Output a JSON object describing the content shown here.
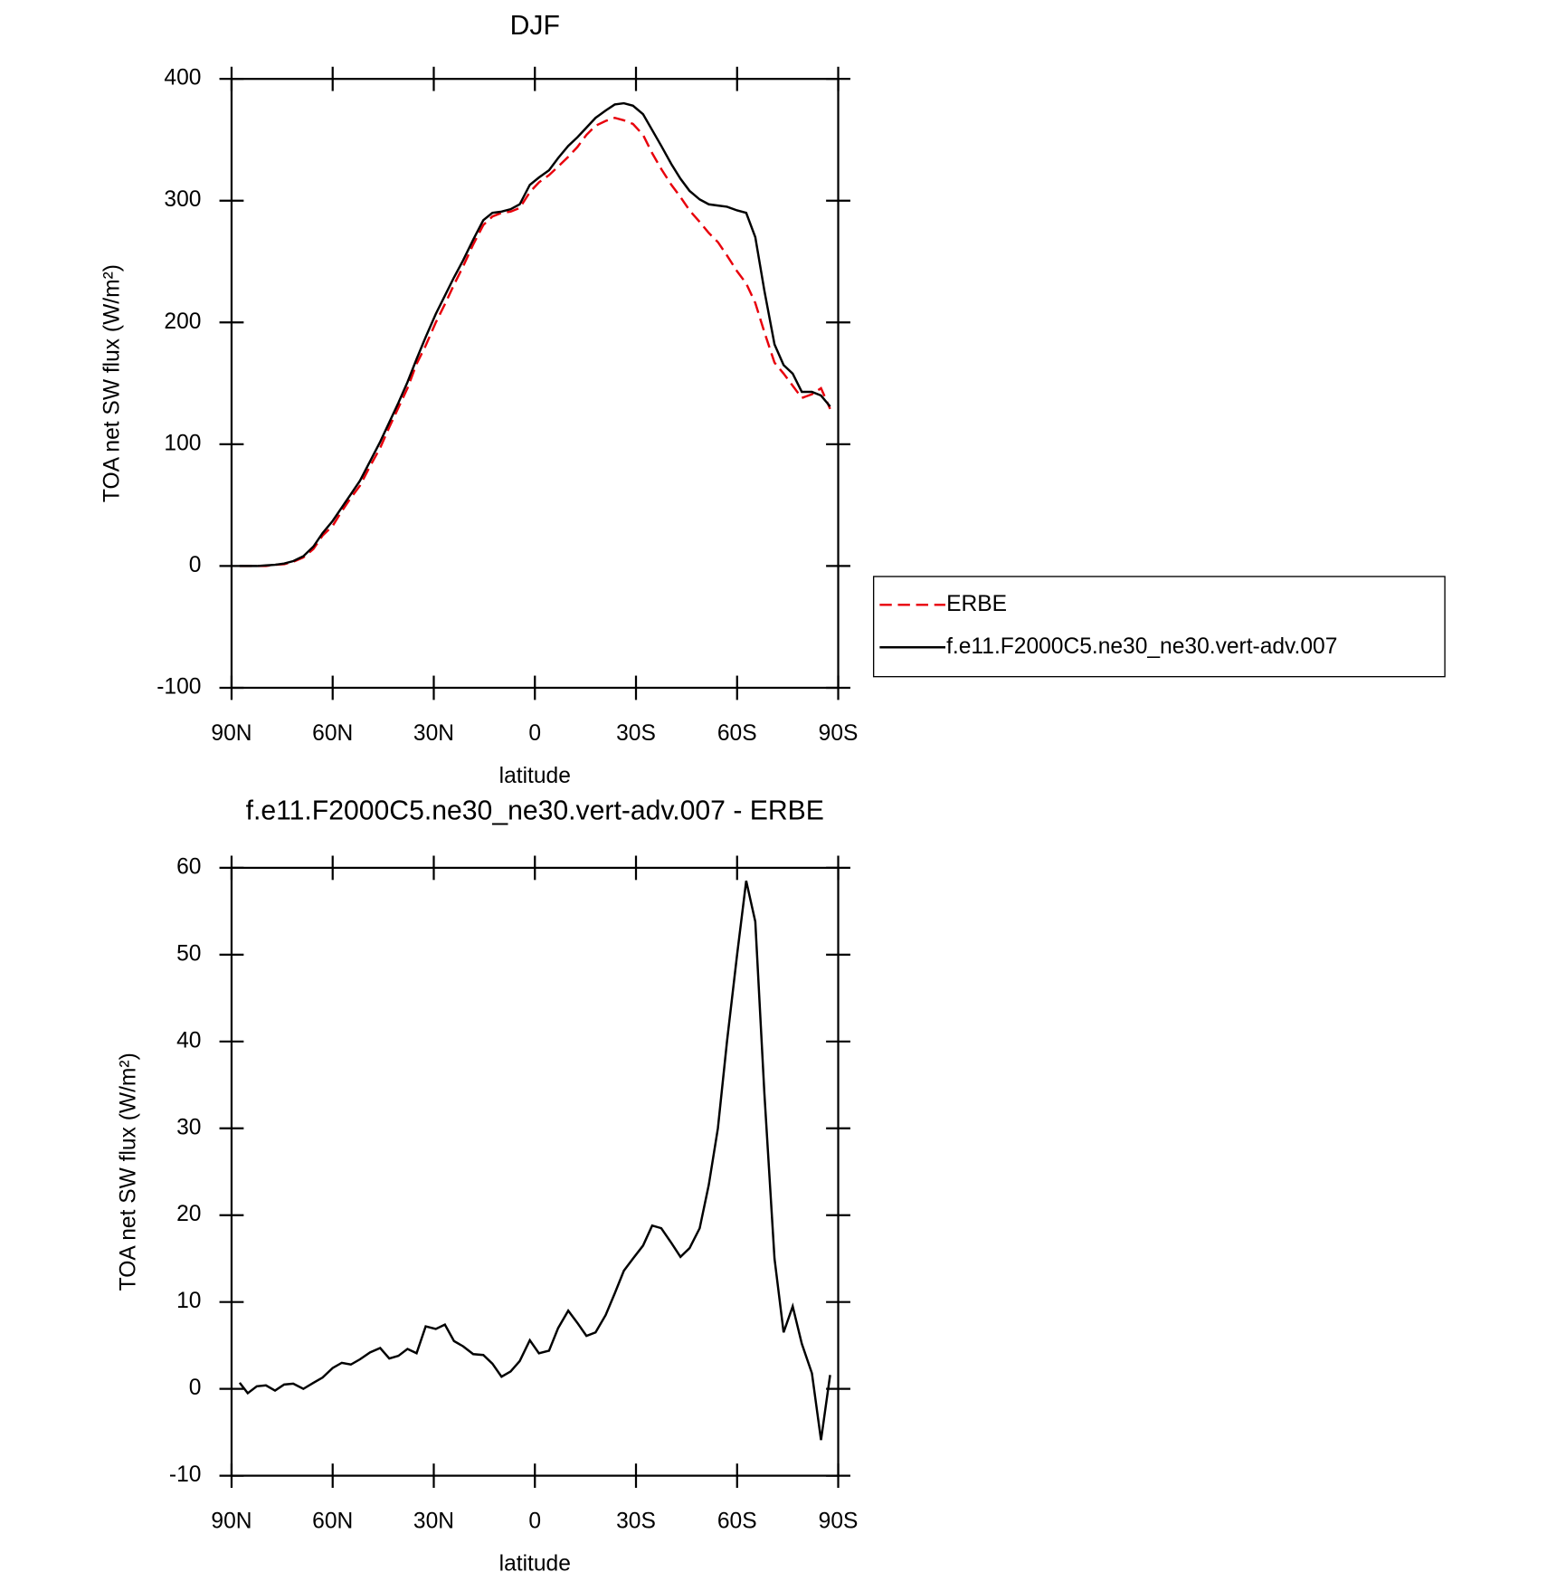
{
  "chart_data": [
    {
      "type": "line",
      "title": "DJF",
      "x_label": "latitude",
      "y_label": "TOA net SW flux (W/m²)",
      "x": [
        87.6,
        85.2,
        82.5,
        79.8,
        77.1,
        74.4,
        71.7,
        68.7,
        65.7,
        63.0,
        60.0,
        57.3,
        54.6,
        51.9,
        48.9,
        45.9,
        43.2,
        40.5,
        37.8,
        35.1,
        32.4,
        29.4,
        26.7,
        24.0,
        21.3,
        18.3,
        15.3,
        12.6,
        9.9,
        7.2,
        4.5,
        1.5,
        -1.2,
        -4.2,
        -6.9,
        -9.9,
        -12.6,
        -15.3,
        -18.0,
        -21.0,
        -23.7,
        -26.4,
        -29.1,
        -32.1,
        -34.8,
        -37.5,
        -40.5,
        -43.2,
        -45.9,
        -48.9,
        -51.6,
        -54.3,
        -57.0,
        -60.0,
        -62.7,
        -65.4,
        -68.1,
        -71.1,
        -73.8,
        -76.5,
        -79.2,
        -82.2,
        -84.9,
        -87.6
      ],
      "series": [
        {
          "name": "ERBE",
          "color": "#e8000b",
          "dash": true,
          "values": [
            0,
            0,
            0,
            0,
            1,
            1.5,
            3.5,
            7,
            14,
            25,
            33,
            45,
            56,
            66,
            82,
            97,
            114,
            130,
            146,
            166,
            181,
            200,
            215,
            231,
            246,
            264,
            280,
            287,
            290,
            291,
            294,
            307,
            315,
            321,
            328,
            336,
            344,
            354,
            361.5,
            365.5,
            368,
            366,
            363,
            354,
            339,
            326,
            313,
            303,
            292,
            282.5,
            273.5,
            266,
            255,
            242,
            232,
            216,
            192,
            167,
            158,
            148,
            138,
            141,
            146,
            129
          ]
        },
        {
          "name": "f.e11.F2000C5.ne30_ne30.vert-adv.007",
          "color": "#000000",
          "dash": false,
          "values": [
            0,
            0,
            0,
            0.5,
            1,
            2,
            4,
            8,
            16,
            27,
            37,
            48,
            59,
            70,
            86,
            102,
            118,
            134,
            151,
            170,
            188,
            207,
            222,
            237,
            251,
            268,
            284,
            290,
            291,
            293,
            297,
            313,
            319,
            325,
            335,
            345,
            352,
            360,
            368,
            374,
            379,
            380,
            378,
            371,
            358,
            345,
            330,
            318,
            308,
            301,
            297,
            296,
            295,
            292,
            290,
            270,
            226,
            182,
            165,
            158,
            143,
            143,
            140,
            131
          ]
        }
      ],
      "xlim": [
        90,
        -90
      ],
      "xticks": [
        {
          "value": 90,
          "label": "90N"
        },
        {
          "value": 60,
          "label": "60N"
        },
        {
          "value": 30,
          "label": "30N"
        },
        0,
        {
          "value": -30,
          "label": "30S"
        },
        {
          "value": -60,
          "label": "60S"
        },
        {
          "value": -90,
          "label": "90S"
        }
      ],
      "ylim": [
        -100,
        400
      ],
      "yticks": [
        -100,
        0,
        100,
        200,
        300,
        400
      ],
      "legend": "right"
    },
    {
      "type": "line",
      "title": "f.e11.F2000C5.ne30_ne30.vert-adv.007 - ERBE",
      "x_label": "latitude",
      "y_label": "TOA net SW flux (W/m²)",
      "x": [
        87.6,
        85.2,
        82.5,
        79.8,
        77.1,
        74.4,
        71.7,
        68.7,
        65.7,
        63.0,
        60.0,
        57.3,
        54.6,
        51.9,
        48.9,
        45.9,
        43.2,
        40.5,
        37.8,
        35.1,
        32.4,
        29.4,
        26.7,
        24.0,
        21.3,
        18.3,
        15.3,
        12.6,
        9.9,
        7.2,
        4.5,
        1.5,
        -1.2,
        -4.2,
        -6.9,
        -9.9,
        -12.6,
        -15.3,
        -18.0,
        -21.0,
        -23.7,
        -26.4,
        -29.1,
        -32.1,
        -34.8,
        -37.5,
        -40.5,
        -43.2,
        -45.9,
        -48.9,
        -51.6,
        -54.3,
        -57.0,
        -60.0,
        -62.7,
        -65.4,
        -68.1,
        -71.1,
        -73.8,
        -76.5,
        -79.2,
        -82.2,
        -84.9,
        -87.6
      ],
      "series": [
        {
          "color": "#000000",
          "dash": false,
          "values": [
            0.7,
            -0.5,
            0.3,
            0.4,
            -0.2,
            0.5,
            0.6,
            0,
            0.7,
            1.3,
            2.4,
            3.0,
            2.8,
            3.4,
            4.2,
            4.7,
            3.5,
            3.8,
            4.6,
            4.1,
            7.2,
            6.9,
            7.4,
            5.5,
            4.9,
            4.0,
            3.9,
            2.9,
            1.4,
            2.0,
            3.2,
            5.6,
            4.1,
            4.4,
            7.0,
            9.0,
            7.6,
            6.1,
            6.5,
            8.5,
            11,
            13.6,
            15,
            16.5,
            18.8,
            18.5,
            16.8,
            15.2,
            16.2,
            18.5,
            23.5,
            30,
            40,
            50,
            58.5,
            53.8,
            34,
            15,
            6.5,
            9.5,
            5.2,
            1.8,
            -5.9,
            1.6
          ]
        }
      ],
      "xlim": [
        90,
        -90
      ],
      "xticks": [
        {
          "value": 90,
          "label": "90N"
        },
        {
          "value": 60,
          "label": "60N"
        },
        {
          "value": 30,
          "label": "30N"
        },
        0,
        {
          "value": -30,
          "label": "30S"
        },
        {
          "value": -60,
          "label": "60S"
        },
        {
          "value": -90,
          "label": "90S"
        }
      ],
      "ylim": [
        -10,
        60
      ],
      "yticks": [
        -10,
        0,
        10,
        20,
        30,
        40,
        50,
        60
      ]
    }
  ]
}
